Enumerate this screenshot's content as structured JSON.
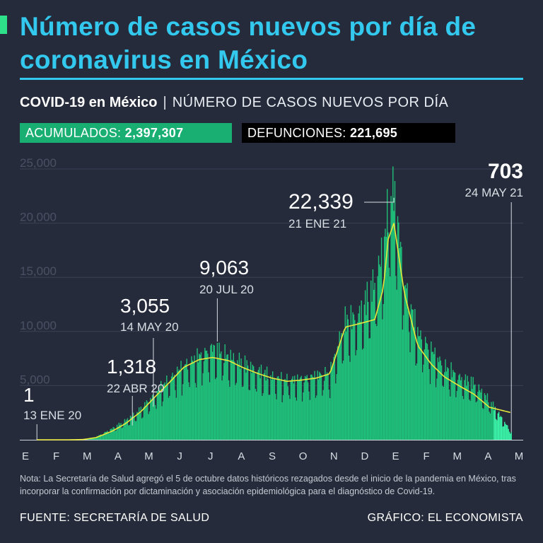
{
  "header": {
    "title": "Número de casos nuevos por día de coronavirus en México",
    "subtitle_strong": "COVID-19 en México",
    "subtitle_sep": "|",
    "subtitle_rest": "NÚMERO DE CASOS NUEVOS POR DÍA"
  },
  "badges": {
    "acumulados_label": "ACUMULADOS:",
    "acumulados_value": "2,397,307",
    "defunciones_label": "DEFUNCIONES:",
    "defunciones_value": "221,695"
  },
  "colors": {
    "background": "#252b3a",
    "title": "#33c9ef",
    "bars": "#1fbf7a",
    "trend": "#e8e83a",
    "acumulados_badge": "#1aaf72",
    "defunciones_badge": "#000000"
  },
  "chart_data": {
    "type": "bar",
    "y_ticks": [
      "25,000",
      "20,000",
      "15,000",
      "10,000",
      "5,000"
    ],
    "ylim": [
      0,
      25000
    ],
    "months": [
      "E",
      "F",
      "M",
      "A",
      "M",
      "J",
      "J",
      "A",
      "S",
      "O",
      "N",
      "D",
      "E",
      "F",
      "M",
      "A",
      "M"
    ],
    "series": [
      {
        "type": "bar",
        "x": [
          "2020-01-13",
          "2020-02-15",
          "2020-03-01",
          "2020-03-15",
          "2020-04-01",
          "2020-04-15",
          "2020-05-01",
          "2020-05-15",
          "2020-06-01",
          "2020-06-15",
          "2020-07-01",
          "2020-07-15",
          "2020-08-01",
          "2020-08-15",
          "2020-09-01",
          "2020-09-15",
          "2020-10-01",
          "2020-10-15",
          "2020-11-01",
          "2020-11-15",
          "2020-12-01",
          "2020-12-15",
          "2021-01-01",
          "2021-01-10",
          "2021-01-15",
          "2021-01-21",
          "2021-02-01",
          "2021-02-15",
          "2021-03-01",
          "2021-03-15",
          "2021-04-01",
          "2021-04-15",
          "2021-05-01",
          "2021-05-24"
        ],
        "values": [
          1,
          1,
          10,
          250,
          1000,
          1700,
          2700,
          4000,
          5500,
          6600,
          7400,
          8200,
          7400,
          6800,
          6100,
          5600,
          5300,
          5400,
          5700,
          6000,
          10500,
          11000,
          14000,
          17000,
          20500,
          22339,
          14000,
          9500,
          8000,
          6500,
          5500,
          5000,
          3500,
          703
        ]
      },
      {
        "type": "line",
        "x": [
          "2020-01-13",
          "2020-02-15",
          "2020-03-01",
          "2020-03-15",
          "2020-04-01",
          "2020-04-15",
          "2020-05-01",
          "2020-05-15",
          "2020-06-01",
          "2020-06-15",
          "2020-07-01",
          "2020-07-15",
          "2020-08-01",
          "2020-08-15",
          "2020-09-01",
          "2020-09-15",
          "2020-10-01",
          "2020-10-15",
          "2020-11-01",
          "2020-11-15",
          "2020-12-01",
          "2020-12-15",
          "2021-01-01",
          "2021-01-10",
          "2021-01-15",
          "2021-01-21",
          "2021-02-01",
          "2021-02-15",
          "2021-03-01",
          "2021-03-15",
          "2021-04-01",
          "2021-04-15",
          "2021-05-01",
          "2021-05-24"
        ],
        "values": [
          0,
          0,
          20,
          200,
          800,
          1500,
          2600,
          3900,
          5400,
          6700,
          7400,
          7600,
          7300,
          6700,
          6100,
          5700,
          5400,
          5500,
          5700,
          6100,
          10400,
          10700,
          11100,
          14000,
          18500,
          20000,
          13500,
          8700,
          7000,
          5800,
          4900,
          4200,
          3000,
          2500
        ]
      }
    ],
    "annotations": [
      {
        "value": "1",
        "date": "13 ENE 20",
        "x": "2020-01-13",
        "y": 1
      },
      {
        "value": "1,318",
        "date": "22 ABR 20",
        "x": "2020-04-22",
        "y": 1318
      },
      {
        "value": "3,055",
        "date": "14 MAY 20",
        "x": "2020-05-14",
        "y": 3055
      },
      {
        "value": "9,063",
        "date": "20 JUL 20",
        "x": "2020-07-20",
        "y": 9063
      },
      {
        "value": "22,339",
        "date": "21 ENE 21",
        "x": "2021-01-21",
        "y": 22339
      },
      {
        "value": "703",
        "date": "24 MAY 21",
        "x": "2021-05-24",
        "y": 703
      }
    ]
  },
  "note": "Nota: La Secretaría de Salud agregó el 5 de octubre datos históricos rezagados desde el inicio de la pandemia en México, tras incorporar la confirmación por dictaminación y asociación epidemiológica para el diagnóstico de Covid-19.",
  "footer": {
    "source": "FUENTE: SECRETARÍA DE SALUD",
    "credit": "GRÁFICO: EL ECONOMISTA"
  }
}
